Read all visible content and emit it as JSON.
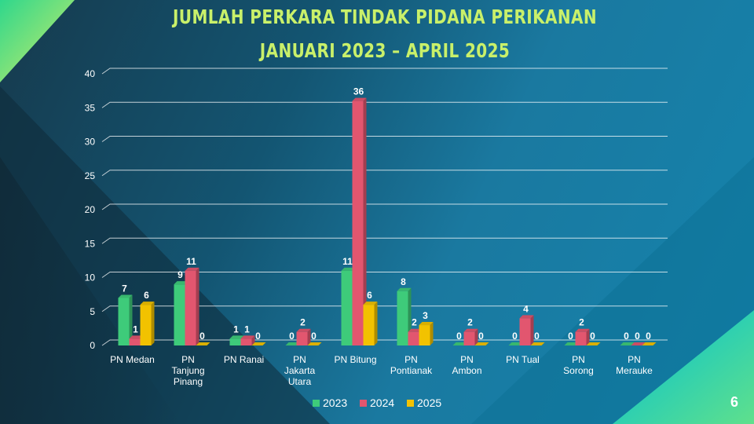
{
  "slide": {
    "title_line1": "JUMLAH PERKARA TINDAK PIDANA PERIKANAN",
    "title_line2": "JANUARI 2023 – APRIL 2025",
    "page_number": "6"
  },
  "colors": {
    "title": "#c9f06a",
    "s2023": "#3ecb7a",
    "s2024": "#e2566f",
    "s2025": "#f2c200"
  },
  "chart_data": {
    "type": "bar",
    "title": "JUMLAH PERKARA TINDAK PIDANA PERIKANAN",
    "subtitle": "JANUARI 2023 – APRIL 2025",
    "categories": [
      [
        "PN Medan"
      ],
      [
        "PN",
        "Tanjung",
        "Pinang"
      ],
      [
        "PN Ranai"
      ],
      [
        "PN",
        "Jakarta",
        "Utara"
      ],
      [
        "PN Bitung"
      ],
      [
        "PN",
        "Pontianak"
      ],
      [
        "PN",
        "Ambon"
      ],
      [
        "PN Tual"
      ],
      [
        "PN",
        "Sorong"
      ],
      [
        "PN",
        "Merauke"
      ]
    ],
    "series": [
      {
        "name": "2023",
        "color": "#3ecb7a",
        "values": [
          7,
          9,
          1,
          0,
          11,
          8,
          0,
          0,
          0,
          0
        ]
      },
      {
        "name": "2024",
        "color": "#e2566f",
        "values": [
          1,
          11,
          1,
          2,
          36,
          2,
          2,
          4,
          2,
          0
        ]
      },
      {
        "name": "2025",
        "color": "#f2c200",
        "values": [
          6,
          0,
          0,
          0,
          6,
          3,
          0,
          0,
          0,
          0
        ]
      }
    ],
    "ylim": [
      0,
      40
    ],
    "yticks": [
      0,
      5,
      10,
      15,
      20,
      25,
      30,
      35,
      40
    ],
    "grid": true,
    "legend": "bottom",
    "data_labels": true
  }
}
